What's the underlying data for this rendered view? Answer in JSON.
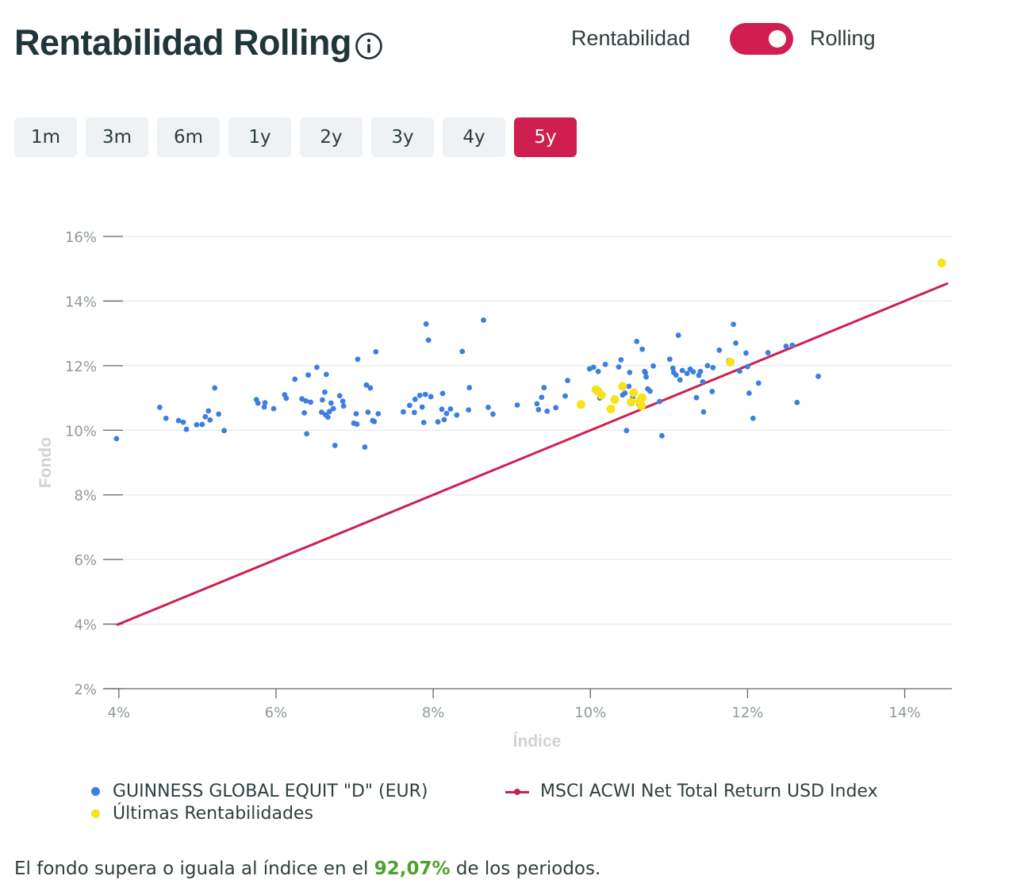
{
  "header": {
    "title": "Rentabilidad Rolling",
    "toggle_left_label": "Rentabilidad",
    "toggle_right_label": "Rolling",
    "toggle_state": "Rolling"
  },
  "tabs": [
    {
      "label": "1m",
      "active": false
    },
    {
      "label": "3m",
      "active": false
    },
    {
      "label": "6m",
      "active": false
    },
    {
      "label": "1y",
      "active": false
    },
    {
      "label": "2y",
      "active": false
    },
    {
      "label": "3y",
      "active": false
    },
    {
      "label": "4y",
      "active": false
    },
    {
      "label": "5y",
      "active": true
    }
  ],
  "colors": {
    "accent": "#cf1f50",
    "fund_points": "#3d7fe0",
    "recent_points": "#f7e31a",
    "highlight_text": "#4ea22c"
  },
  "chart_data": {
    "type": "scatter",
    "xlabel": "Índice",
    "ylabel": "Fondo",
    "xlim": [
      3.8,
      14.6
    ],
    "ylim": [
      2,
      16
    ],
    "x_ticks": [
      4,
      6,
      8,
      10,
      12,
      14
    ],
    "y_ticks": [
      2,
      4,
      6,
      8,
      10,
      12,
      14,
      16
    ],
    "x_tick_labels": [
      "4%",
      "6%",
      "8%",
      "10%",
      "12%",
      "14%"
    ],
    "y_tick_labels": [
      "2%",
      "4%",
      "6%",
      "8%",
      "10%",
      "12%",
      "14%",
      "16%"
    ],
    "grid": "horizontal",
    "legend_position": "bottom",
    "series": [
      {
        "name": "GUINNESS GLOBAL EQUIT \"D\" (EUR)",
        "kind": "points",
        "color": "#3d7fe0",
        "points": [
          [
            3.97,
            9.74
          ],
          [
            4.52,
            10.71
          ],
          [
            4.6,
            10.37
          ],
          [
            4.76,
            10.3
          ],
          [
            4.82,
            10.25
          ],
          [
            4.86,
            10.03
          ],
          [
            4.99,
            10.17
          ],
          [
            5.06,
            10.18
          ],
          [
            5.1,
            10.42
          ],
          [
            5.14,
            10.6
          ],
          [
            5.16,
            10.32
          ],
          [
            5.22,
            11.31
          ],
          [
            5.27,
            10.5
          ],
          [
            5.34,
            9.99
          ],
          [
            5.75,
            10.95
          ],
          [
            5.77,
            10.84
          ],
          [
            5.85,
            10.72
          ],
          [
            5.86,
            10.85
          ],
          [
            5.97,
            10.67
          ],
          [
            6.11,
            11.1
          ],
          [
            6.13,
            10.99
          ],
          [
            6.24,
            11.58
          ],
          [
            6.33,
            10.97
          ],
          [
            6.36,
            10.54
          ],
          [
            6.38,
            10.91
          ],
          [
            6.39,
            9.89
          ],
          [
            6.41,
            11.71
          ],
          [
            6.44,
            10.87
          ],
          [
            6.52,
            11.95
          ],
          [
            6.58,
            10.56
          ],
          [
            6.59,
            10.94
          ],
          [
            6.62,
            11.18
          ],
          [
            6.63,
            10.48
          ],
          [
            6.64,
            11.73
          ],
          [
            6.66,
            10.41
          ],
          [
            6.68,
            10.58
          ],
          [
            6.7,
            10.84
          ],
          [
            6.73,
            10.67
          ],
          [
            6.75,
            9.53
          ],
          [
            6.81,
            11.07
          ],
          [
            6.85,
            10.9
          ],
          [
            6.86,
            10.75
          ],
          [
            6.99,
            10.22
          ],
          [
            7.02,
            10.51
          ],
          [
            7.03,
            10.19
          ],
          [
            7.04,
            12.2
          ],
          [
            7.13,
            9.48
          ],
          [
            7.15,
            11.4
          ],
          [
            7.17,
            10.56
          ],
          [
            7.2,
            11.31
          ],
          [
            7.23,
            10.3
          ],
          [
            7.25,
            10.27
          ],
          [
            7.27,
            12.43
          ],
          [
            7.3,
            10.51
          ],
          [
            7.62,
            10.57
          ],
          [
            7.7,
            10.77
          ],
          [
            7.76,
            10.55
          ],
          [
            7.77,
            10.96
          ],
          [
            7.83,
            11.08
          ],
          [
            7.86,
            10.72
          ],
          [
            7.88,
            10.24
          ],
          [
            7.9,
            11.11
          ],
          [
            7.91,
            13.29
          ],
          [
            7.94,
            12.79
          ],
          [
            7.97,
            11.04
          ],
          [
            8.06,
            10.26
          ],
          [
            8.11,
            10.65
          ],
          [
            8.12,
            11.14
          ],
          [
            8.14,
            10.33
          ],
          [
            8.17,
            10.52
          ],
          [
            8.22,
            10.66
          ],
          [
            8.3,
            10.47
          ],
          [
            8.37,
            12.44
          ],
          [
            8.45,
            10.63
          ],
          [
            8.46,
            11.32
          ],
          [
            8.64,
            13.41
          ],
          [
            8.7,
            10.71
          ],
          [
            8.76,
            10.5
          ],
          [
            9.07,
            10.78
          ],
          [
            9.32,
            10.82
          ],
          [
            9.34,
            10.64
          ],
          [
            9.38,
            11.02
          ],
          [
            9.41,
            11.32
          ],
          [
            9.45,
            10.59
          ],
          [
            9.56,
            10.7
          ],
          [
            9.68,
            11.06
          ],
          [
            9.71,
            11.54
          ],
          [
            9.99,
            11.9
          ],
          [
            10.04,
            11.95
          ],
          [
            10.1,
            11.82
          ],
          [
            10.12,
            11.0
          ],
          [
            10.19,
            12.04
          ],
          [
            10.36,
            11.96
          ],
          [
            10.39,
            12.18
          ],
          [
            10.41,
            11.09
          ],
          [
            10.44,
            11.15
          ],
          [
            10.46,
            9.99
          ],
          [
            10.49,
            11.36
          ],
          [
            10.5,
            11.79
          ],
          [
            10.54,
            11.03
          ],
          [
            10.59,
            12.75
          ],
          [
            10.62,
            10.79
          ],
          [
            10.66,
            12.51
          ],
          [
            10.69,
            11.82
          ],
          [
            10.7,
            11.78
          ],
          [
            10.71,
            11.65
          ],
          [
            10.73,
            11.28
          ],
          [
            10.76,
            11.21
          ],
          [
            10.8,
            11.99
          ],
          [
            10.88,
            10.89
          ],
          [
            10.91,
            9.83
          ],
          [
            11.01,
            12.2
          ],
          [
            11.05,
            11.92
          ],
          [
            11.06,
            11.79
          ],
          [
            11.09,
            11.71
          ],
          [
            11.12,
            12.94
          ],
          [
            11.14,
            11.56
          ],
          [
            11.17,
            11.85
          ],
          [
            11.23,
            11.76
          ],
          [
            11.27,
            11.89
          ],
          [
            11.31,
            11.81
          ],
          [
            11.35,
            11.01
          ],
          [
            11.38,
            11.7
          ],
          [
            11.4,
            11.82
          ],
          [
            11.43,
            11.5
          ],
          [
            11.44,
            10.57
          ],
          [
            11.49,
            12.0
          ],
          [
            11.55,
            11.2
          ],
          [
            11.56,
            11.94
          ],
          [
            11.64,
            12.48
          ],
          [
            11.76,
            12.16
          ],
          [
            11.82,
            13.28
          ],
          [
            11.85,
            12.7
          ],
          [
            11.9,
            11.83
          ],
          [
            11.98,
            12.39
          ],
          [
            12.0,
            11.97
          ],
          [
            12.02,
            11.15
          ],
          [
            12.07,
            10.37
          ],
          [
            12.14,
            11.46
          ],
          [
            12.26,
            12.4
          ],
          [
            12.49,
            12.6
          ],
          [
            12.57,
            12.63
          ],
          [
            12.63,
            10.86
          ],
          [
            12.9,
            11.67
          ]
        ]
      },
      {
        "name": "Últimas Rentabilidades",
        "kind": "points",
        "color": "#f7e31a",
        "points": [
          [
            9.88,
            10.8
          ],
          [
            10.07,
            11.26
          ],
          [
            10.1,
            11.2
          ],
          [
            10.14,
            11.09
          ],
          [
            10.26,
            10.66
          ],
          [
            10.31,
            10.95
          ],
          [
            10.41,
            11.36
          ],
          [
            10.52,
            10.87
          ],
          [
            10.55,
            11.16
          ],
          [
            10.63,
            10.91
          ],
          [
            10.65,
            10.75
          ],
          [
            10.66,
            11.01
          ],
          [
            11.78,
            12.11
          ],
          [
            14.47,
            15.18
          ]
        ]
      },
      {
        "name": "MSCI ACWI Net Total Return USD Index",
        "kind": "line",
        "color": "#cf1f50",
        "points": [
          [
            3.97,
            3.97
          ],
          [
            14.55,
            14.55
          ]
        ]
      }
    ]
  },
  "legend": [
    {
      "label": "GUINNESS GLOBAL EQUIT \"D\" (EUR)"
    },
    {
      "label": "Últimas Rentabilidades"
    },
    {
      "label": "MSCI ACWI Net Total Return USD Index"
    }
  ],
  "footer": {
    "before": "El fondo supera o iguala al índice en el ",
    "percentage": "92,07%",
    "after": " de los periodos."
  }
}
